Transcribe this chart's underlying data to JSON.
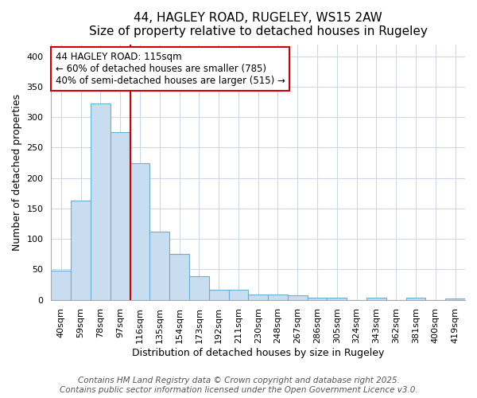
{
  "title1": "44, HAGLEY ROAD, RUGELEY, WS15 2AW",
  "title2": "Size of property relative to detached houses in Rugeley",
  "xlabel": "Distribution of detached houses by size in Rugeley",
  "ylabel": "Number of detached properties",
  "categories": [
    "40sqm",
    "59sqm",
    "78sqm",
    "97sqm",
    "116sqm",
    "135sqm",
    "154sqm",
    "173sqm",
    "192sqm",
    "211sqm",
    "230sqm",
    "248sqm",
    "267sqm",
    "286sqm",
    "305sqm",
    "324sqm",
    "343sqm",
    "362sqm",
    "381sqm",
    "400sqm",
    "419sqm"
  ],
  "values": [
    48,
    163,
    322,
    275,
    225,
    112,
    75,
    39,
    17,
    16,
    9,
    9,
    7,
    4,
    4,
    0,
    4,
    0,
    4,
    0,
    2
  ],
  "bar_color": "#c9ddf0",
  "bar_edge_color": "#6aaed6",
  "vline_x_index": 4,
  "vline_color": "#cc0000",
  "annotation_line1": "44 HAGLEY ROAD: 115sqm",
  "annotation_line2": "← 60% of detached houses are smaller (785)",
  "annotation_line3": "40% of semi-detached houses are larger (515) →",
  "annotation_box_color": "#ffffff",
  "annotation_box_edge": "#cc0000",
  "ylim": [
    0,
    420
  ],
  "yticks": [
    0,
    50,
    100,
    150,
    200,
    250,
    300,
    350,
    400
  ],
  "footnote1": "Contains HM Land Registry data © Crown copyright and database right 2025.",
  "footnote2": "Contains public sector information licensed under the Open Government Licence v3.0.",
  "bg_color": "#ffffff",
  "plot_bg_color": "#ffffff",
  "grid_color": "#d0d8e8",
  "title1_fontsize": 11,
  "title2_fontsize": 10,
  "xlabel_fontsize": 9,
  "ylabel_fontsize": 9,
  "tick_fontsize": 8,
  "annotation_fontsize": 8.5,
  "footnote_fontsize": 7.5
}
